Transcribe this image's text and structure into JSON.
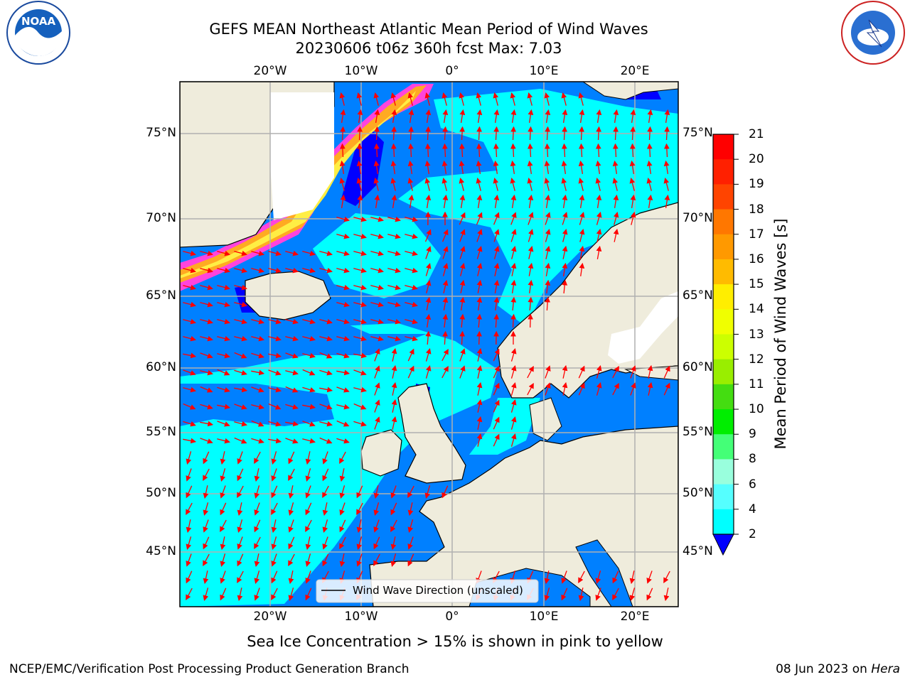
{
  "title": {
    "line1": "GEFS MEAN Northeast Atlantic Mean Period of Wind Waves",
    "line2": "20230606 t06z 360h fcst   Max: 7.03"
  },
  "logos": {
    "left": "noaa-logo",
    "right": "national-weather-service-logo",
    "left_text": "NOAA",
    "left_ring_text": "NATIONAL OCEANIC AND ATMOSPHERIC ADMINISTRATION · U.S. DEPARTMENT OF COMMERCE",
    "right_ring_text": "NATIONAL WEATHER SERVICE"
  },
  "map": {
    "lon_ticks": [
      "20°W",
      "10°W",
      "0°",
      "10°E",
      "20°E"
    ],
    "lat_ticks": [
      "75°N",
      "70°N",
      "65°N",
      "60°N",
      "55°N",
      "50°N",
      "45°N"
    ],
    "land_color": "#efecdc",
    "ice_colors": [
      "#ff44dd",
      "#ffaa22",
      "#ffee44"
    ],
    "arrow_color": "#ff0000",
    "legend_label": "Wind Wave Direction (unscaled)"
  },
  "colorbar": {
    "label": "Mean Period of Wind Waves [s]",
    "tick_labels": [
      "21",
      "20",
      "19",
      "18",
      "17",
      "16",
      "15",
      "14",
      "13",
      "12",
      "11",
      "10",
      "9",
      "8",
      "6",
      "4",
      "2"
    ],
    "colors": [
      "#ff0000",
      "#ff2000",
      "#ff4400",
      "#ff7700",
      "#ff9900",
      "#ffbb00",
      "#ffee00",
      "#f0ff00",
      "#ccff00",
      "#99ee00",
      "#44dd11",
      "#00ee00",
      "#44ff77",
      "#99ffdd",
      "#55ffff",
      "#00ffff",
      "#0080ff",
      "#0000ff"
    ]
  },
  "caption": "Sea Ice Concentration > 15% is shown in pink to yellow",
  "footer": {
    "left": "NCEP/EMC/Verification Post Processing Product Generation Branch",
    "right_date": "08 Jun 2023 on ",
    "right_host": "Hera"
  }
}
